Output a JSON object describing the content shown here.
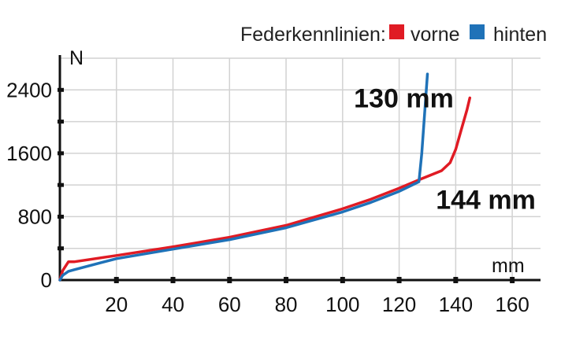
{
  "chart_data": {
    "type": "line",
    "legend": {
      "title": "Federkennlinien:",
      "placement": "top-right"
    },
    "xunit": "mm",
    "yunit": "N",
    "xlim": [
      0,
      170
    ],
    "ylim": [
      0,
      2800
    ],
    "x_ticks": [
      20,
      40,
      60,
      80,
      100,
      120,
      140,
      160
    ],
    "y_ticks": [
      0,
      800,
      1600,
      2400
    ],
    "y_minor_ticks": [
      400,
      1200,
      2000
    ],
    "grid": true,
    "series": [
      {
        "name": "vorne",
        "color": "#e01b24",
        "points": [
          [
            0,
            0
          ],
          [
            1,
            120
          ],
          [
            3,
            230
          ],
          [
            5,
            230
          ],
          [
            20,
            310
          ],
          [
            40,
            420
          ],
          [
            60,
            540
          ],
          [
            80,
            690
          ],
          [
            100,
            900
          ],
          [
            110,
            1020
          ],
          [
            120,
            1160
          ],
          [
            128,
            1280
          ],
          [
            135,
            1380
          ],
          [
            138,
            1480
          ],
          [
            140,
            1650
          ],
          [
            142,
            1900
          ],
          [
            144,
            2150
          ],
          [
            145,
            2300
          ]
        ]
      },
      {
        "name": "hinten",
        "color": "#1f72b8",
        "points": [
          [
            0,
            0
          ],
          [
            1,
            60
          ],
          [
            3,
            110
          ],
          [
            5,
            130
          ],
          [
            20,
            270
          ],
          [
            40,
            390
          ],
          [
            60,
            510
          ],
          [
            80,
            660
          ],
          [
            100,
            860
          ],
          [
            110,
            980
          ],
          [
            120,
            1120
          ],
          [
            127,
            1240
          ],
          [
            128,
            1600
          ],
          [
            129,
            2100
          ],
          [
            130,
            2600
          ]
        ]
      }
    ],
    "annotations": [
      {
        "text": "130 mm",
        "x": 104,
        "y": 2180
      },
      {
        "text": "144 mm",
        "x": 133,
        "y": 900
      }
    ]
  }
}
